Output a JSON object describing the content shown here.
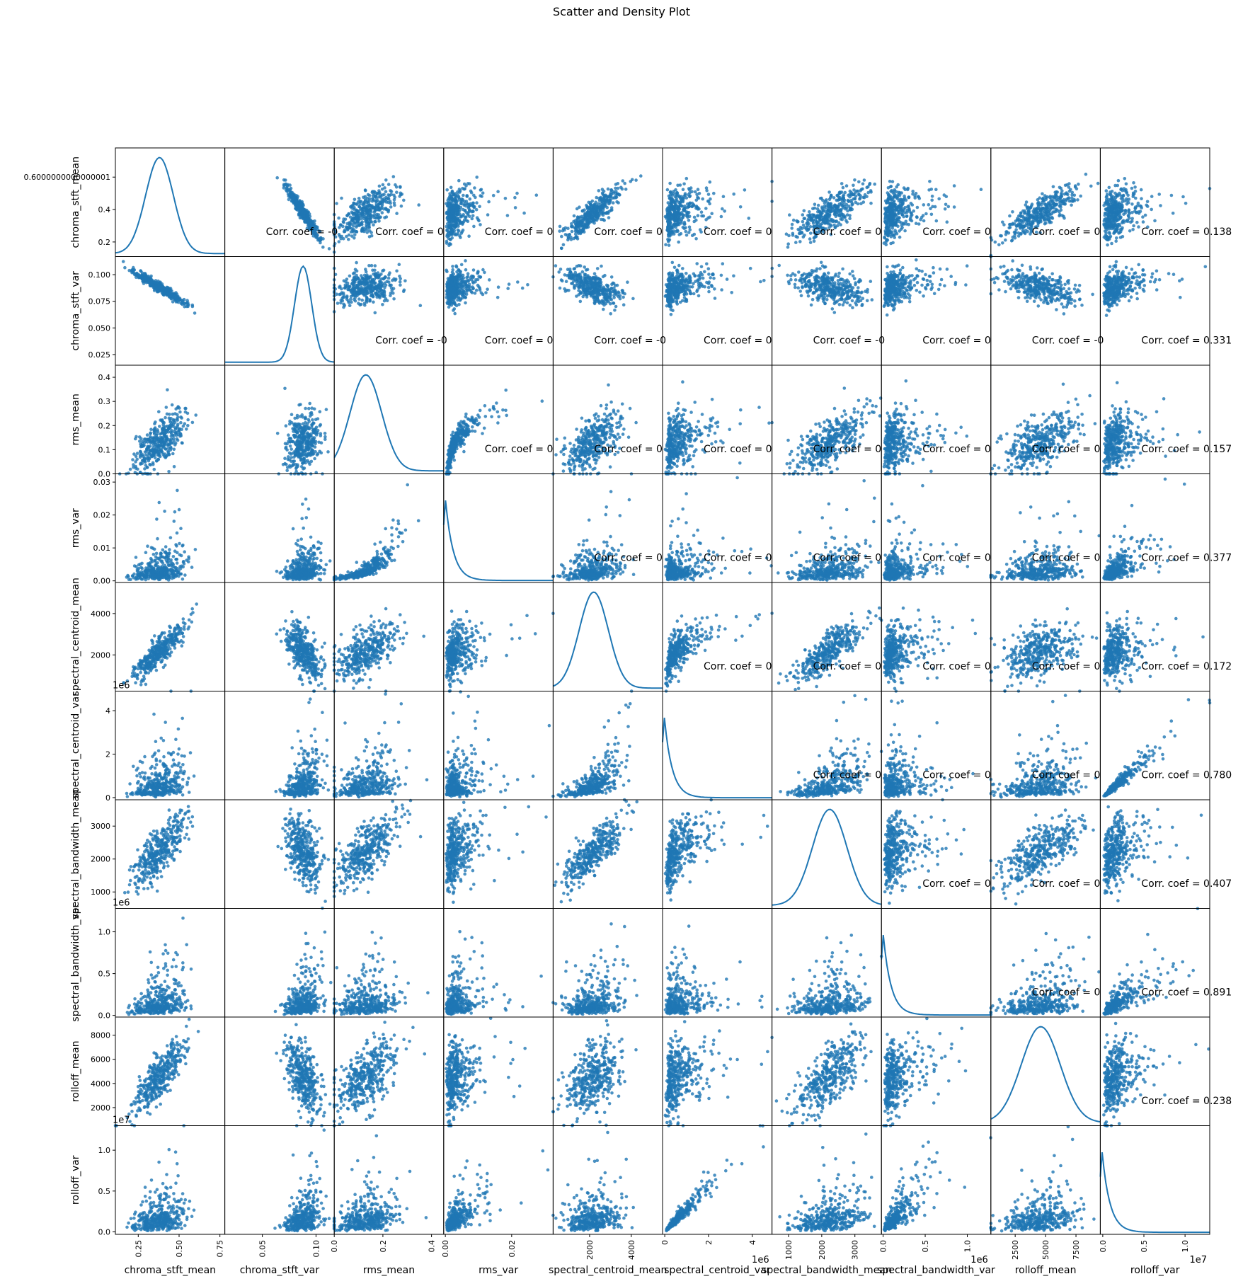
{
  "chart_data": {
    "type": "scatter_matrix",
    "title": "Scatter and Density Plot",
    "variables": [
      {
        "name": "chroma_stft_mean",
        "range": [
          0.11,
          0.78
        ],
        "ticks": [
          0.2,
          0.4,
          0.6000000000000001
        ],
        "tick_labels": [
          "0.2",
          "0.4",
          "0.6000000000000001"
        ],
        "xtick_values": [
          0.25,
          0.5,
          0.75
        ],
        "xtick_labels": [
          "0.25",
          "0.50",
          "0.75"
        ],
        "offset": "",
        "mean": 0.38,
        "sd": 0.085
      },
      {
        "name": "chroma_stft_var",
        "range": [
          0.015,
          0.117
        ],
        "ticks": [
          0.025,
          0.05,
          0.075,
          0.1
        ],
        "tick_labels": [
          "0.025",
          "0.050",
          "0.075",
          "0.100"
        ],
        "xtick_values": [
          0.05,
          0.1
        ],
        "xtick_labels": [
          "0.05",
          "0.10"
        ],
        "offset": "",
        "mean": 0.088,
        "sd": 0.008
      },
      {
        "name": "rms_mean",
        "range": [
          0.0,
          0.45
        ],
        "ticks": [
          0.0,
          0.1,
          0.2,
          0.3,
          0.4
        ],
        "tick_labels": [
          "0.0",
          "0.1",
          "0.2",
          "0.3",
          "0.4"
        ],
        "xtick_values": [
          0.0,
          0.2,
          0.4
        ],
        "xtick_labels": [
          "0.0",
          "0.2",
          "0.4"
        ],
        "offset": "",
        "mean": 0.13,
        "sd": 0.065
      },
      {
        "name": "rms_var",
        "range": [
          -0.0005,
          0.0325
        ],
        "ticks": [
          0.0,
          0.01,
          0.02,
          0.03
        ],
        "tick_labels": [
          "0.00",
          "0.01",
          "0.02",
          "0.03"
        ],
        "xtick_values": [
          0.0,
          0.02
        ],
        "xtick_labels": [
          "0.00",
          "0.02"
        ],
        "offset": "",
        "mean": 0.003,
        "sd": 0.004
      },
      {
        "name": "spectral_centroid_mean",
        "range": [
          250,
          5500
        ],
        "ticks": [
          2000,
          4000
        ],
        "tick_labels": [
          "2000",
          "4000"
        ],
        "xtick_values": [
          2000,
          4000
        ],
        "xtick_labels": [
          "2000",
          "4000"
        ],
        "offset": "",
        "mean": 2200,
        "sd": 700
      },
      {
        "name": "spectral_centroid_var",
        "range": [
          -0.1,
          4.9
        ],
        "ticks": [
          0,
          2,
          4
        ],
        "tick_labels": [
          "0",
          "2",
          "4"
        ],
        "xtick_values": [
          0,
          2,
          4
        ],
        "xtick_labels": [
          "0",
          "2",
          "4"
        ],
        "offset": "1e6",
        "mean": 0.5,
        "sd": 0.45
      },
      {
        "name": "spectral_bandwidth_mean",
        "range": [
          500,
          3800
        ],
        "ticks": [
          1000,
          2000,
          3000
        ],
        "tick_labels": [
          "1000",
          "2000",
          "3000"
        ],
        "xtick_values": [
          1000,
          2000,
          3000
        ],
        "xtick_labels": [
          "1000",
          "2000",
          "3000"
        ],
        "offset": "",
        "mean": 2240,
        "sd": 520
      },
      {
        "name": "spectral_bandwidth_var",
        "range": [
          -0.02,
          1.28
        ],
        "ticks": [
          0.0,
          0.5,
          1.0
        ],
        "tick_labels": [
          "0.0",
          "0.5",
          "1.0"
        ],
        "xtick_values": [
          0.0,
          0.5,
          1.0
        ],
        "xtick_labels": [
          "0.0",
          "0.5",
          "1.0"
        ],
        "offset": "1e6",
        "mean": 0.12,
        "sd": 0.09
      },
      {
        "name": "rolloff_mean",
        "range": [
          500,
          9500
        ],
        "ticks": [
          2000,
          4000,
          6000,
          8000
        ],
        "tick_labels": [
          "2000",
          "4000",
          "6000",
          "8000"
        ],
        "xtick_values": [
          2500,
          5000,
          7500
        ],
        "xtick_labels": [
          "2500",
          "5000",
          "7500"
        ],
        "offset": "",
        "mean": 4600,
        "sd": 1600
      },
      {
        "name": "rolloff_var",
        "range": [
          -0.03,
          1.3
        ],
        "ticks": [
          0.0,
          0.5,
          1.0
        ],
        "tick_labels": [
          "0.0",
          "0.5",
          "1.0"
        ],
        "xtick_values": [
          0.0,
          0.5,
          1.0
        ],
        "xtick_labels": [
          "0.0",
          "0.5",
          "1.0"
        ],
        "offset": "1e7",
        "mean": 0.14,
        "sd": 0.12
      }
    ],
    "corr_annotations": [
      {
        "row": 0,
        "cols": [
          "Corr. coef = -0",
          "Corr. coef = 0",
          "Corr. coef = 0",
          "Corr. coef = 0",
          "Corr. coef = 0",
          "Corr. coef = 0",
          "Corr. coef = 0",
          "Corr. coef = 0",
          "Corr. coef = 0.138"
        ],
        "start_col": 1
      },
      {
        "row": 1,
        "cols": [
          "Corr. coef = -0",
          "Corr. coef = 0",
          "Corr. coef = -0",
          "Corr. coef = 0",
          "Corr. coef = -0",
          "Corr. coef = 0",
          "Corr. coef = -0",
          "Corr. coef = 0.331"
        ],
        "start_col": 2
      },
      {
        "row": 2,
        "cols": [
          "Corr. coef = 0",
          "Corr. coef = 0",
          "Corr. coef = 0",
          "Corr. coef = 0",
          "Corr. coef = 0",
          "Corr. coef = 0",
          "Corr. coef = 0.157"
        ],
        "start_col": 3
      },
      {
        "row": 3,
        "cols": [
          "Corr. coef = 0",
          "Corr. coef = 0",
          "Corr. coef = 0",
          "Corr. coef = 0",
          "Corr. coef = 0",
          "Corr. coef = 0.377"
        ],
        "start_col": 4
      },
      {
        "row": 4,
        "cols": [
          "Corr. coef = 0",
          "Corr. coef = 0",
          "Corr. coef = 0",
          "Corr. coef = 0",
          "Corr. coef = 0.172"
        ],
        "start_col": 5
      },
      {
        "row": 5,
        "cols": [
          "Corr. coef = 0",
          "Corr. coef = 0",
          "Corr. coef = 0",
          "Corr. coef = 0.780"
        ],
        "start_col": 6
      },
      {
        "row": 6,
        "cols": [
          "Corr. coef = 0",
          "Corr. coef = 0",
          "Corr. coef = 0.407"
        ],
        "start_col": 7
      },
      {
        "row": 7,
        "cols": [
          "Corr. coef = 0",
          "Corr. coef = 0.891"
        ],
        "start_col": 8
      },
      {
        "row": 8,
        "cols": [
          "Corr. coef = 0.238"
        ],
        "start_col": 9
      }
    ],
    "color": "#1f77b4",
    "grid": false
  }
}
